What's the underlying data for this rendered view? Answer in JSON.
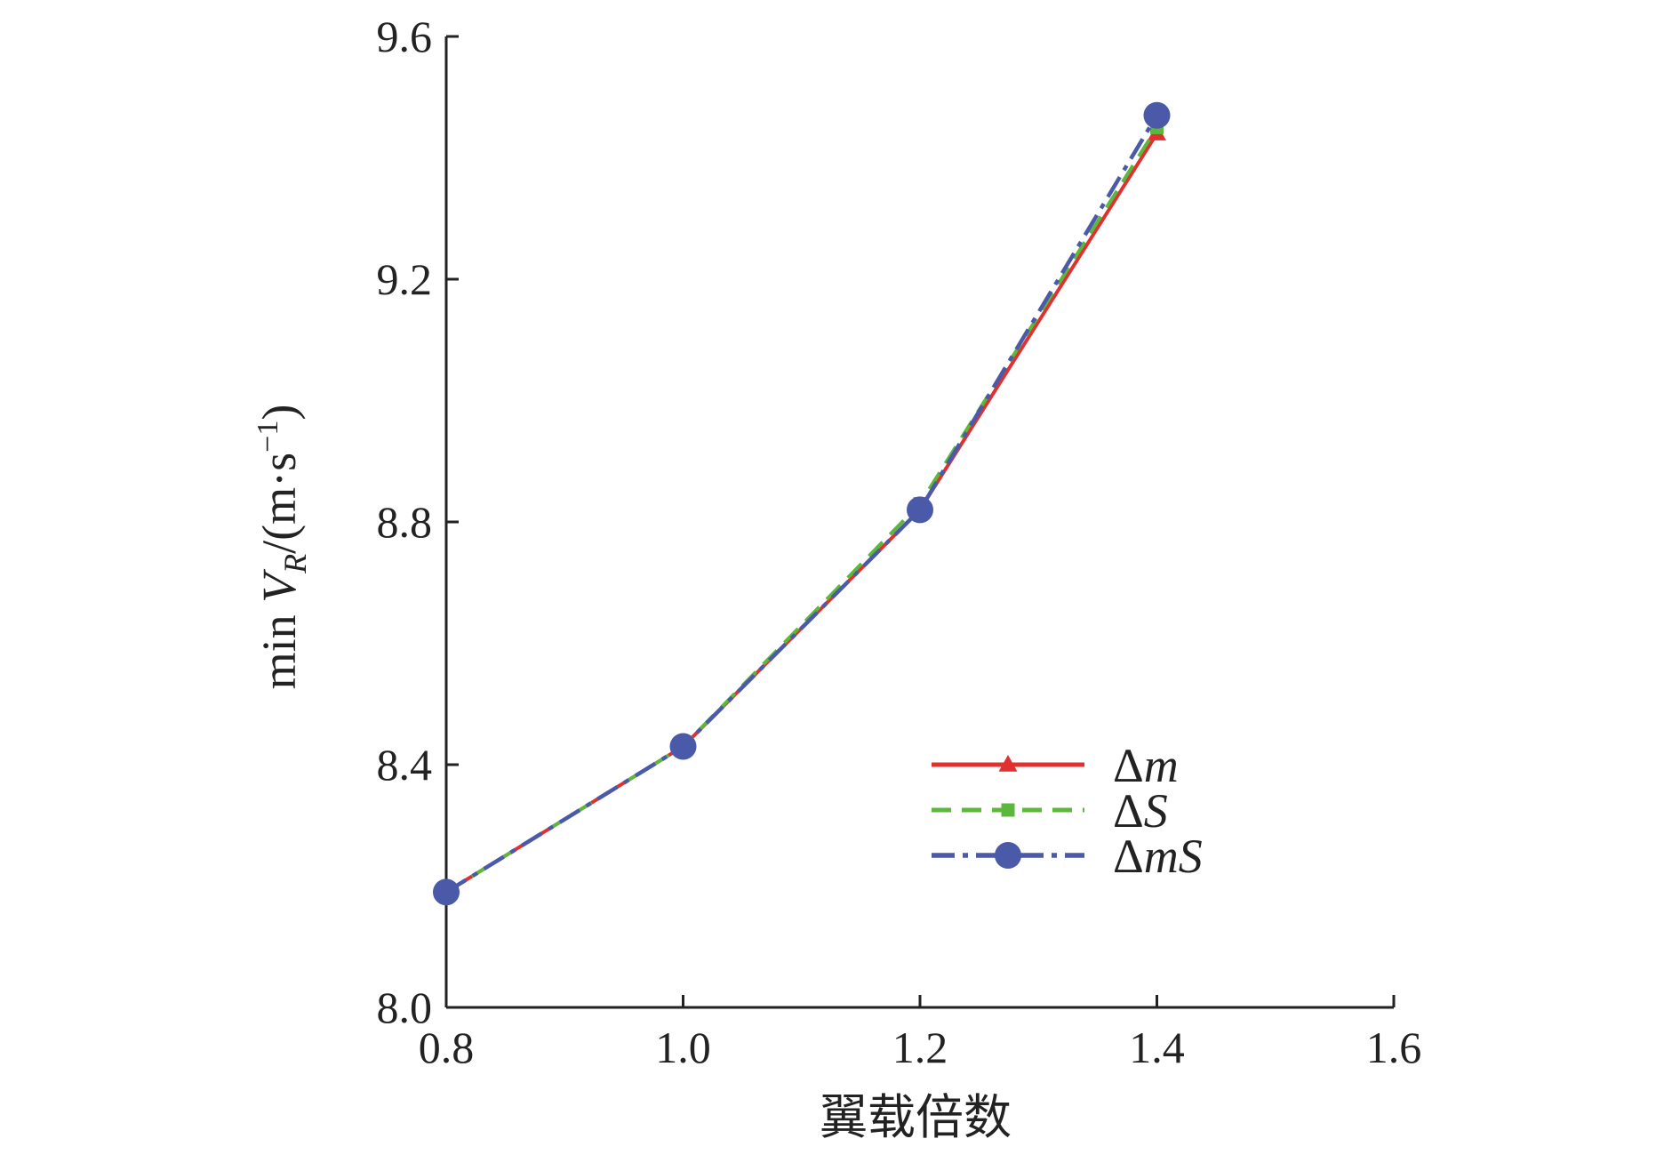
{
  "chart_data": {
    "type": "line",
    "title": "",
    "xlabel": "翼载倍数",
    "ylabel": {
      "prefix": "min ",
      "var": "V",
      "sub": "R",
      "unit_open": "/(m·s",
      "sup": "−1",
      "unit_close": ")"
    },
    "x": [
      0.8,
      1.0,
      1.2,
      1.4
    ],
    "xlim": [
      0.8,
      1.6
    ],
    "ylim": [
      8.0,
      9.6
    ],
    "xticks": [
      0.8,
      1.0,
      1.2,
      1.4,
      1.6
    ],
    "yticks": [
      8.0,
      8.4,
      8.8,
      9.2,
      9.6
    ],
    "xtick_labels": [
      "0.8",
      "1.0",
      "1.2",
      "1.4",
      "1.6"
    ],
    "ytick_labels": [
      "8.0",
      "8.4",
      "8.8",
      "9.2",
      "9.6"
    ],
    "grid": false,
    "legend_position": "lower-right",
    "series": [
      {
        "name": "Δm",
        "name_delta": "Δ",
        "name_var": "m",
        "values": [
          8.19,
          8.43,
          8.82,
          9.44
        ],
        "color": "#e03030",
        "marker": "triangle",
        "dash": "solid"
      },
      {
        "name": "ΔS",
        "name_delta": "Δ",
        "name_var": "S",
        "values": [
          8.19,
          8.43,
          8.83,
          9.45
        ],
        "color": "#5cb83c",
        "marker": "square",
        "dash": "dashed"
      },
      {
        "name": "ΔmS",
        "name_delta": "Δ",
        "name_var": "mS",
        "values": [
          8.19,
          8.43,
          8.82,
          9.47
        ],
        "color": "#4a5aa8",
        "marker": "circle",
        "dash": "dashdot"
      }
    ]
  }
}
